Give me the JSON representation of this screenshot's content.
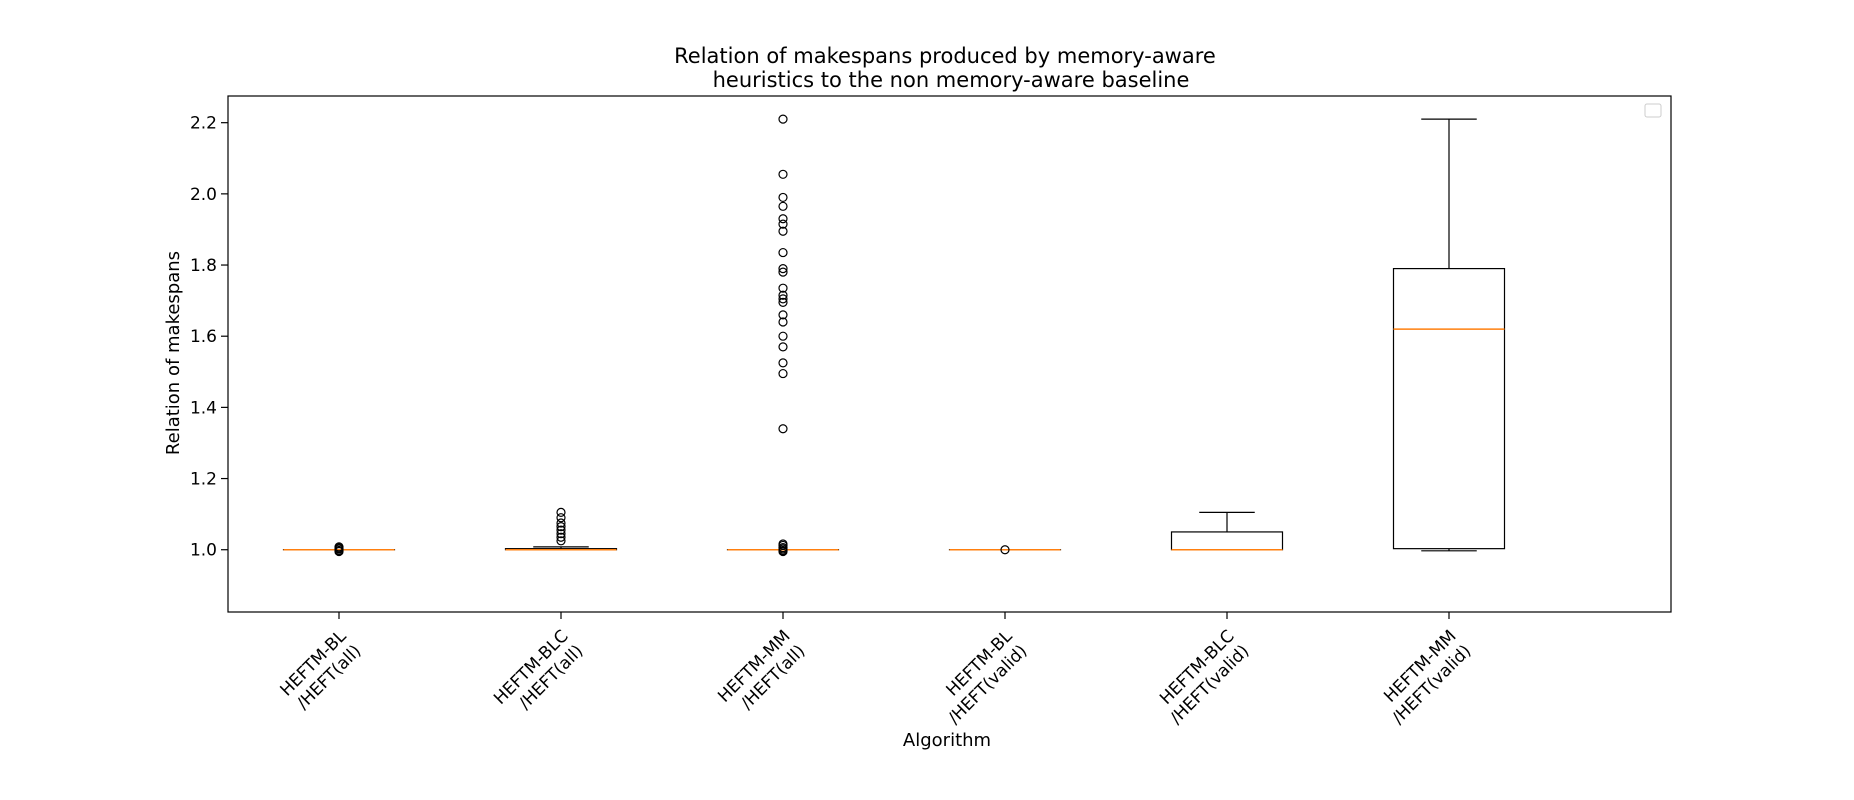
{
  "chart_data": {
    "type": "box",
    "title": [
      "Relation of makespans produced by memory-aware",
      "heuristics to the non memory-aware baseline"
    ],
    "xlabel": "Algorithm",
    "ylabel": "Relation of makespans",
    "ylim": [
      0.825,
      2.275
    ],
    "yticks": [
      1.0,
      1.2,
      1.4,
      1.6,
      1.8,
      2.0,
      2.2
    ],
    "ytick_labels": [
      "1.0",
      "1.2",
      "1.4",
      "1.6",
      "1.8",
      "2.0",
      "2.2"
    ],
    "grid": false,
    "legend": {
      "placement": "top-right",
      "entries": []
    },
    "colors": {
      "box": "#000000",
      "median": "#ff7f0e",
      "outlier": "#000000"
    },
    "categories": [
      [
        "HEFTM-BL",
        "/HEFT(all)"
      ],
      [
        "HEFTM-BLC",
        "/HEFT(all)"
      ],
      [
        "HEFTM-MM",
        "/HEFT(all)"
      ],
      [
        "HEFTM-BL",
        "/HEFT(valid)"
      ],
      [
        "HEFTM-BLC",
        "/HEFT(valid)"
      ],
      [
        "HEFTM-MM",
        "/HEFT(valid)"
      ]
    ],
    "boxes": [
      {
        "whisker_low": 1.0,
        "q1": 1.0,
        "median": 1.0,
        "q3": 1.0,
        "whisker_high": 1.0,
        "outliers": [
          0.995,
          0.998,
          1.002,
          1.005,
          1.008
        ]
      },
      {
        "whisker_low": 1.0,
        "q1": 1.0,
        "median": 1.0,
        "q3": 1.003,
        "whisker_high": 1.008,
        "outliers": [
          1.025,
          1.035,
          1.045,
          1.055,
          1.065,
          1.075,
          1.09,
          1.105
        ]
      },
      {
        "whisker_low": 1.0,
        "q1": 1.0,
        "median": 1.0,
        "q3": 1.0,
        "whisker_high": 1.0,
        "outliers": [
          0.995,
          0.998,
          1.002,
          1.006,
          1.012,
          1.016,
          1.34,
          1.495,
          1.525,
          1.57,
          1.6,
          1.64,
          1.66,
          1.695,
          1.705,
          1.715,
          1.735,
          1.78,
          1.79,
          1.835,
          1.895,
          1.915,
          1.93,
          1.965,
          1.99,
          2.055,
          2.21
        ]
      },
      {
        "whisker_low": 1.0,
        "q1": 1.0,
        "median": 1.0,
        "q3": 1.0,
        "whisker_high": 1.0,
        "outliers": [
          1.0
        ]
      },
      {
        "whisker_low": 1.0,
        "q1": 1.0,
        "median": 1.0,
        "q3": 1.05,
        "whisker_high": 1.105,
        "outliers": []
      },
      {
        "whisker_low": 0.997,
        "q1": 1.003,
        "median": 1.62,
        "q3": 1.79,
        "whisker_high": 2.21,
        "outliers": []
      }
    ]
  }
}
